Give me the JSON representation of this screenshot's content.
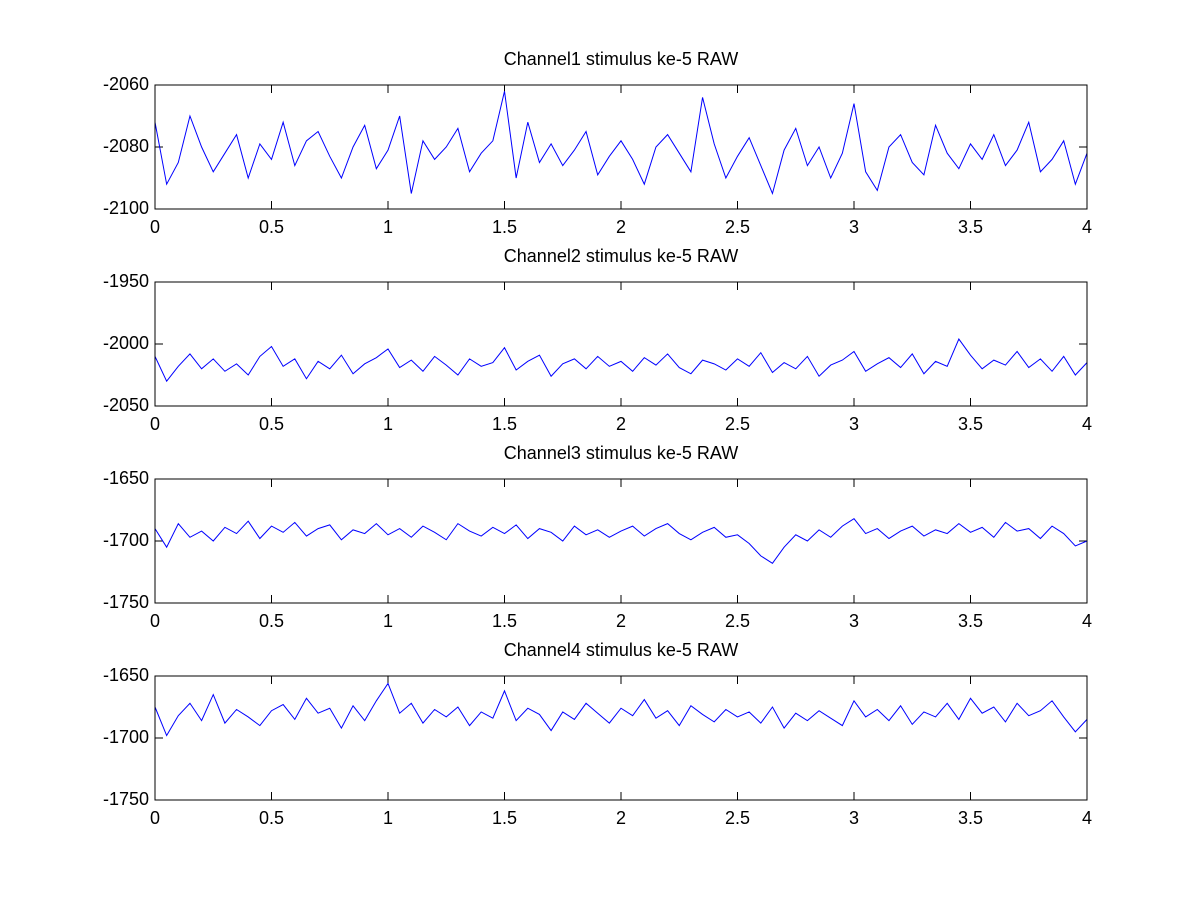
{
  "chart_data": [
    {
      "type": "line",
      "title": "Channel1 stimulus ke-5 RAW",
      "color": "#0000ff",
      "xlim": [
        0,
        4
      ],
      "xticks": [
        0,
        0.5,
        1,
        1.5,
        2,
        2.5,
        3,
        3.5,
        4
      ],
      "ylim": [
        -2100,
        -2060
      ],
      "yticks": [
        -2100,
        -2080,
        -2060
      ],
      "x": [
        0,
        0.05,
        0.1,
        0.15,
        0.2,
        0.25,
        0.3,
        0.35,
        0.4,
        0.45,
        0.5,
        0.55,
        0.6,
        0.65,
        0.7,
        0.75,
        0.8,
        0.85,
        0.9,
        0.95,
        1,
        1.05,
        1.1,
        1.15,
        1.2,
        1.25,
        1.3,
        1.35,
        1.4,
        1.45,
        1.5,
        1.55,
        1.6,
        1.65,
        1.7,
        1.75,
        1.8,
        1.85,
        1.9,
        1.95,
        2,
        2.05,
        2.1,
        2.15,
        2.2,
        2.25,
        2.3,
        2.35,
        2.4,
        2.45,
        2.5,
        2.55,
        2.6,
        2.65,
        2.7,
        2.75,
        2.8,
        2.85,
        2.9,
        2.95,
        3,
        3.05,
        3.1,
        3.15,
        3.2,
        3.25,
        3.3,
        3.35,
        3.4,
        3.45,
        3.5,
        3.55,
        3.6,
        3.65,
        3.7,
        3.75,
        3.8,
        3.85,
        3.9,
        3.95,
        4
      ],
      "values": [
        -2072,
        -2092,
        -2085,
        -2070,
        -2080,
        -2088,
        -2082,
        -2076,
        -2090,
        -2079,
        -2084,
        -2072,
        -2086,
        -2078,
        -2075,
        -2083,
        -2090,
        -2080,
        -2073,
        -2087,
        -2081,
        -2070,
        -2095,
        -2078,
        -2084,
        -2080,
        -2074,
        -2088,
        -2082,
        -2078,
        -2062,
        -2090,
        -2072,
        -2085,
        -2079,
        -2086,
        -2081,
        -2075,
        -2089,
        -2083,
        -2078,
        -2084,
        -2092,
        -2080,
        -2076,
        -2082,
        -2088,
        -2064,
        -2079,
        -2090,
        -2083,
        -2077,
        -2086,
        -2095,
        -2081,
        -2074,
        -2086,
        -2080,
        -2090,
        -2082,
        -2066,
        -2088,
        -2094,
        -2080,
        -2076,
        -2085,
        -2089,
        -2073,
        -2082,
        -2087,
        -2079,
        -2084,
        -2076,
        -2086,
        -2081,
        -2072,
        -2088,
        -2084,
        -2078,
        -2092,
        -2082
      ]
    },
    {
      "type": "line",
      "title": "Channel2 stimulus ke-5 RAW",
      "color": "#0000ff",
      "xlim": [
        0,
        4
      ],
      "xticks": [
        0,
        0.5,
        1,
        1.5,
        2,
        2.5,
        3,
        3.5,
        4
      ],
      "ylim": [
        -2050,
        -1950
      ],
      "yticks": [
        -2050,
        -2000,
        -1950
      ],
      "x": [
        0,
        0.05,
        0.1,
        0.15,
        0.2,
        0.25,
        0.3,
        0.35,
        0.4,
        0.45,
        0.5,
        0.55,
        0.6,
        0.65,
        0.7,
        0.75,
        0.8,
        0.85,
        0.9,
        0.95,
        1,
        1.05,
        1.1,
        1.15,
        1.2,
        1.25,
        1.3,
        1.35,
        1.4,
        1.45,
        1.5,
        1.55,
        1.6,
        1.65,
        1.7,
        1.75,
        1.8,
        1.85,
        1.9,
        1.95,
        2,
        2.05,
        2.1,
        2.15,
        2.2,
        2.25,
        2.3,
        2.35,
        2.4,
        2.45,
        2.5,
        2.55,
        2.6,
        2.65,
        2.7,
        2.75,
        2.8,
        2.85,
        2.9,
        2.95,
        3,
        3.05,
        3.1,
        3.15,
        3.2,
        3.25,
        3.3,
        3.35,
        3.4,
        3.45,
        3.5,
        3.55,
        3.6,
        3.65,
        3.7,
        3.75,
        3.8,
        3.85,
        3.9,
        3.95,
        4
      ],
      "values": [
        -2010,
        -2030,
        -2018,
        -2008,
        -2020,
        -2012,
        -2022,
        -2016,
        -2025,
        -2010,
        -2002,
        -2018,
        -2012,
        -2028,
        -2014,
        -2020,
        -2009,
        -2024,
        -2016,
        -2011,
        -2004,
        -2019,
        -2013,
        -2022,
        -2010,
        -2017,
        -2025,
        -2012,
        -2018,
        -2015,
        -2003,
        -2021,
        -2014,
        -2009,
        -2026,
        -2016,
        -2012,
        -2020,
        -2010,
        -2018,
        -2014,
        -2022,
        -2011,
        -2017,
        -2008,
        -2019,
        -2024,
        -2013,
        -2016,
        -2021,
        -2012,
        -2018,
        -2007,
        -2023,
        -2015,
        -2020,
        -2010,
        -2026,
        -2017,
        -2013,
        -2006,
        -2022,
        -2016,
        -2011,
        -2019,
        -2008,
        -2024,
        -2014,
        -2018,
        -1996,
        -2009,
        -2020,
        -2013,
        -2017,
        -2006,
        -2019,
        -2012,
        -2022,
        -2010,
        -2025,
        -2015
      ]
    },
    {
      "type": "line",
      "title": "Channel3 stimulus ke-5 RAW",
      "color": "#0000ff",
      "xlim": [
        0,
        4
      ],
      "xticks": [
        0,
        0.5,
        1,
        1.5,
        2,
        2.5,
        3,
        3.5,
        4
      ],
      "ylim": [
        -1750,
        -1650
      ],
      "yticks": [
        -1750,
        -1700,
        -1650
      ],
      "x": [
        0,
        0.05,
        0.1,
        0.15,
        0.2,
        0.25,
        0.3,
        0.35,
        0.4,
        0.45,
        0.5,
        0.55,
        0.6,
        0.65,
        0.7,
        0.75,
        0.8,
        0.85,
        0.9,
        0.95,
        1,
        1.05,
        1.1,
        1.15,
        1.2,
        1.25,
        1.3,
        1.35,
        1.4,
        1.45,
        1.5,
        1.55,
        1.6,
        1.65,
        1.7,
        1.75,
        1.8,
        1.85,
        1.9,
        1.95,
        2,
        2.05,
        2.1,
        2.15,
        2.2,
        2.25,
        2.3,
        2.35,
        2.4,
        2.45,
        2.5,
        2.55,
        2.6,
        2.65,
        2.7,
        2.75,
        2.8,
        2.85,
        2.9,
        2.95,
        3,
        3.05,
        3.1,
        3.15,
        3.2,
        3.25,
        3.3,
        3.35,
        3.4,
        3.45,
        3.5,
        3.55,
        3.6,
        3.65,
        3.7,
        3.75,
        3.8,
        3.85,
        3.9,
        3.95,
        4
      ],
      "values": [
        -1690,
        -1705,
        -1686,
        -1697,
        -1692,
        -1700,
        -1689,
        -1694,
        -1684,
        -1698,
        -1688,
        -1693,
        -1685,
        -1696,
        -1690,
        -1687,
        -1699,
        -1691,
        -1694,
        -1686,
        -1695,
        -1690,
        -1697,
        -1688,
        -1693,
        -1699,
        -1686,
        -1692,
        -1696,
        -1689,
        -1694,
        -1687,
        -1698,
        -1690,
        -1693,
        -1700,
        -1688,
        -1695,
        -1691,
        -1697,
        -1692,
        -1688,
        -1696,
        -1690,
        -1686,
        -1694,
        -1699,
        -1693,
        -1689,
        -1697,
        -1695,
        -1702,
        -1712,
        -1718,
        -1705,
        -1695,
        -1700,
        -1691,
        -1697,
        -1688,
        -1682,
        -1694,
        -1690,
        -1698,
        -1692,
        -1688,
        -1696,
        -1691,
        -1694,
        -1686,
        -1693,
        -1689,
        -1697,
        -1685,
        -1692,
        -1690,
        -1698,
        -1688,
        -1694,
        -1704,
        -1700
      ]
    },
    {
      "type": "line",
      "title": "Channel4 stimulus ke-5 RAW",
      "color": "#0000ff",
      "xlim": [
        0,
        4
      ],
      "xticks": [
        0,
        0.5,
        1,
        1.5,
        2,
        2.5,
        3,
        3.5,
        4
      ],
      "ylim": [
        -1750,
        -1650
      ],
      "yticks": [
        -1750,
        -1700,
        -1650
      ],
      "x": [
        0,
        0.05,
        0.1,
        0.15,
        0.2,
        0.25,
        0.3,
        0.35,
        0.4,
        0.45,
        0.5,
        0.55,
        0.6,
        0.65,
        0.7,
        0.75,
        0.8,
        0.85,
        0.9,
        0.95,
        1,
        1.05,
        1.1,
        1.15,
        1.2,
        1.25,
        1.3,
        1.35,
        1.4,
        1.45,
        1.5,
        1.55,
        1.6,
        1.65,
        1.7,
        1.75,
        1.8,
        1.85,
        1.9,
        1.95,
        2,
        2.05,
        2.1,
        2.15,
        2.2,
        2.25,
        2.3,
        2.35,
        2.4,
        2.45,
        2.5,
        2.55,
        2.6,
        2.65,
        2.7,
        2.75,
        2.8,
        2.85,
        2.9,
        2.95,
        3,
        3.05,
        3.1,
        3.15,
        3.2,
        3.25,
        3.3,
        3.35,
        3.4,
        3.45,
        3.5,
        3.55,
        3.6,
        3.65,
        3.7,
        3.75,
        3.8,
        3.85,
        3.9,
        3.95,
        4
      ],
      "values": [
        -1675,
        -1698,
        -1682,
        -1672,
        -1686,
        -1665,
        -1688,
        -1677,
        -1683,
        -1690,
        -1678,
        -1673,
        -1685,
        -1668,
        -1680,
        -1676,
        -1692,
        -1674,
        -1686,
        -1670,
        -1656,
        -1680,
        -1672,
        -1688,
        -1677,
        -1683,
        -1675,
        -1690,
        -1679,
        -1684,
        -1662,
        -1686,
        -1676,
        -1681,
        -1694,
        -1679,
        -1685,
        -1672,
        -1680,
        -1688,
        -1676,
        -1682,
        -1669,
        -1684,
        -1678,
        -1690,
        -1674,
        -1681,
        -1687,
        -1677,
        -1683,
        -1679,
        -1688,
        -1675,
        -1692,
        -1680,
        -1686,
        -1678,
        -1684,
        -1690,
        -1670,
        -1683,
        -1677,
        -1686,
        -1674,
        -1689,
        -1679,
        -1683,
        -1672,
        -1685,
        -1668,
        -1680,
        -1675,
        -1687,
        -1672,
        -1682,
        -1678,
        -1670,
        -1683,
        -1695,
        -1685
      ]
    }
  ]
}
